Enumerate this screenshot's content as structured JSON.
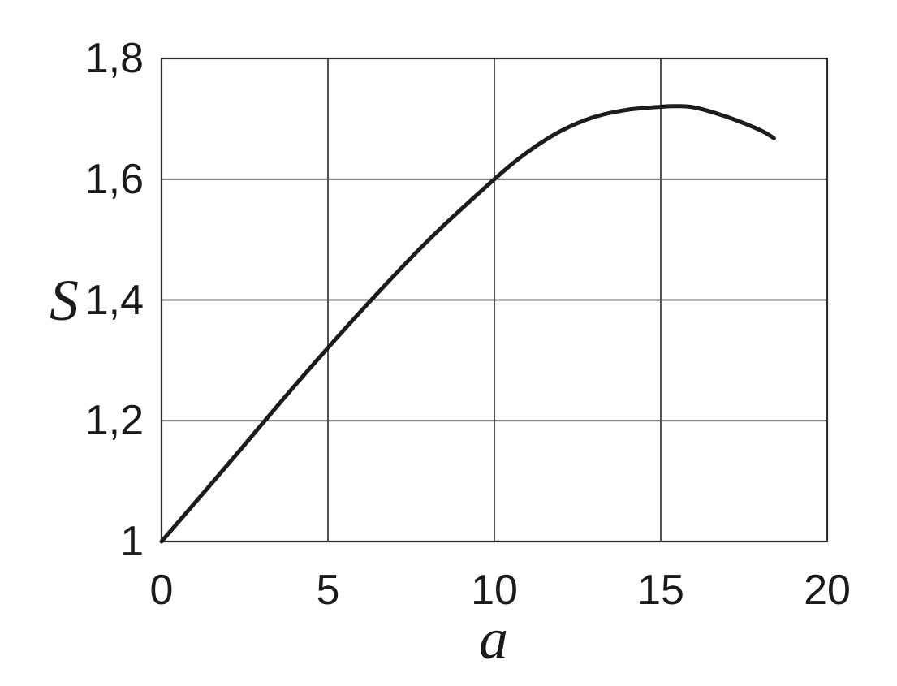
{
  "chart_data": {
    "type": "line",
    "title": "",
    "xlabel": "a",
    "ylabel": "S",
    "xlim": [
      0,
      20
    ],
    "ylim": [
      1.0,
      1.8
    ],
    "grid": true,
    "legend": false,
    "decimal_separator": ",",
    "xticks": [
      {
        "value": 0,
        "label": "0"
      },
      {
        "value": 5,
        "label": "5"
      },
      {
        "value": 10,
        "label": "10"
      },
      {
        "value": 15,
        "label": "15"
      },
      {
        "value": 20,
        "label": "20"
      }
    ],
    "yticks": [
      {
        "value": 1.0,
        "label": "1"
      },
      {
        "value": 1.2,
        "label": "1,2"
      },
      {
        "value": 1.4,
        "label": "1,4"
      },
      {
        "value": 1.6,
        "label": "1,6"
      },
      {
        "value": 1.8,
        "label": "1,8"
      }
    ],
    "series": [
      {
        "name": "S vs a",
        "color": "#1c1c1c",
        "stroke_width": 5,
        "points": [
          [
            0,
            1.0
          ],
          [
            2,
            1.128
          ],
          [
            4,
            1.258
          ],
          [
            6,
            1.382
          ],
          [
            8,
            1.498
          ],
          [
            10,
            1.6
          ],
          [
            11,
            1.645
          ],
          [
            12,
            1.68
          ],
          [
            13,
            1.703
          ],
          [
            14,
            1.715
          ],
          [
            15,
            1.72
          ],
          [
            15.4,
            1.721
          ],
          [
            16,
            1.719
          ],
          [
            17,
            1.703
          ],
          [
            18,
            1.681
          ],
          [
            18.4,
            1.668
          ]
        ]
      }
    ],
    "colors": {
      "grid": "#3f3f3f",
      "border": "#2b2b2b",
      "text": "#1a1a1a",
      "background": "#ffffff"
    }
  }
}
